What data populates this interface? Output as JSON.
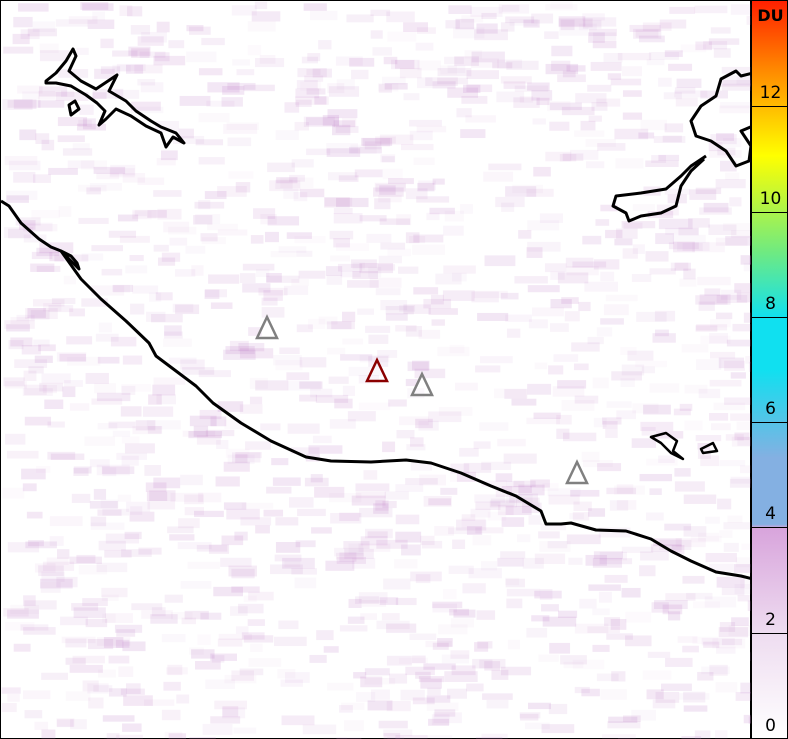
{
  "colorbar": {
    "unit": "DU",
    "min": 0,
    "max": 14,
    "ticks": [
      "0",
      "2",
      "4",
      "6",
      "8",
      "10",
      "12"
    ],
    "colors": [
      "#ffffff",
      "#eedcf0",
      "#d8a4dc",
      "#84b0e2",
      "#10e0f0",
      "#70ea80",
      "#ffff00",
      "#ff9000",
      "#ff2000"
    ]
  },
  "markers": [
    {
      "type": "triangle",
      "color": "#808080",
      "role": "other-volcano"
    },
    {
      "type": "triangle",
      "color": "#8b0000",
      "role": "target-volcano"
    },
    {
      "type": "triangle",
      "color": "#808080",
      "role": "other-volcano"
    },
    {
      "type": "triangle",
      "color": "#808080",
      "role": "other-volcano"
    }
  ],
  "background_color": "#f6e8f6"
}
